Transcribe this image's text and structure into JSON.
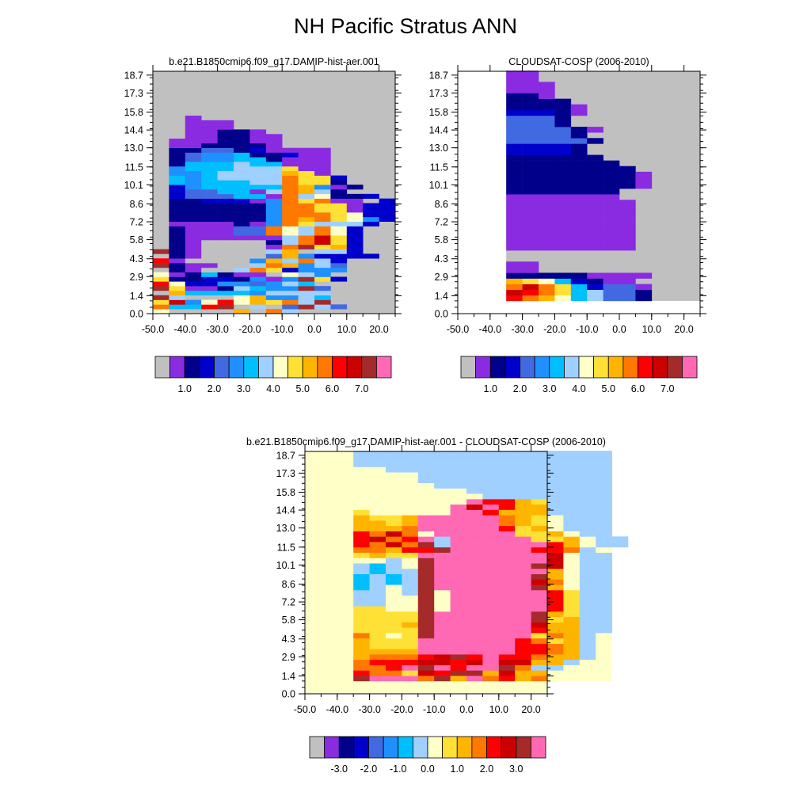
{
  "title": "NH Pacific Stratus ANN",
  "colors": {
    "palette": [
      "#c0c0c0",
      "#8a2be2",
      "#00008b",
      "#0000cd",
      "#4169e1",
      "#1e90ff",
      "#00bfff",
      "#a0d0ff",
      "#ffffc8",
      "#ffe135",
      "#ffb400",
      "#ff7800",
      "#ff0000",
      "#cd0000",
      "#a52a2a",
      "#ff69b4"
    ],
    "missing_panel1": "#c0c0c0",
    "missing_panel2_outside": "#ffffff",
    "missing_panel3": "#ffffc8"
  },
  "chart_data": [
    {
      "type": "heatmap",
      "title": "b.e21.B1850cmip6.f09_g17.DAMIP-hist-aer.001",
      "xlim": [
        -50,
        25
      ],
      "ylim": [
        0,
        19
      ],
      "x_ticks": [
        "-50.0",
        "-40.0",
        "-30.0",
        "-20.0",
        "-10.0",
        "0.0",
        "10.0",
        "20.0"
      ],
      "y_ticks": [
        "0.0",
        "1.4",
        "2.9",
        "4.3",
        "5.8",
        "7.2",
        "8.6",
        "10.1",
        "11.5",
        "13.0",
        "14.4",
        "15.8",
        "17.3",
        "18.7"
      ],
      "colorbar_labels": [
        "1.0",
        "2.0",
        "3.0",
        "4.0",
        "5.0",
        "6.0",
        "7.0"
      ],
      "x_range": [
        -50,
        10
      ],
      "rows": [
        "8ff0fafb7fffffff",
        "b66cef7f4e74ffff",
        "9d58c8a9b7efffff",
        "e7fff8a5576fffff",
        "fa666657777fffff",
        "e91127655e4fffff",
        "c833554576ffffff",
        "922332515e93ffff",
        "8126211f875fffff",
        "f21007b93555ffff",
        "e211007ba574ffff",
        "c100005a7b73ffff",
        "f2100004a53333ff",
        "e2100007af773fff",
        "f2100001be9a3fff",
        "f21000027bd93fff",
        "f21111117bd93fff",
        "f211144b87b83fff",
        "f211144b87b83fff",
        "f1111215b97773ff",
        "f2222225bab9853f",
        "f2222225bbb9833f",
        "f2222225bb99133f",
        "f2222225bb99133f",
        "f2233315b9b11f3f",
        "f3444661b78223ff",
        "f3446617ba72ffff",
        "f3566666ba512fff",
        "f6566677b992ffff",
        "f6567777b993ffff",
        "f5567777a91fffff",
        "f5666777911fffff",
        "f2666766111fffff",
        "f2455662111fffff",
        "f2455622311fffff",
        "f2244231111fffff",
        "f1122221ffffffff",
        "f1112211ffffffff",
        "ff112211ffffffff",
        "ff11221fffffffff",
        "ff111fffffffffff",
        "ff111fffffffffff",
        "ff1fffffffffffff",
        "ffffffffffffffff",
        "ffffffffffffffff",
        "ffffffffffffffff",
        "ffffffffffffffff",
        "ffffffffffffffff",
        "ffffffffffffffff",
        "ffffffffffffffff"
      ]
    },
    {
      "type": "heatmap",
      "title": "CLOUDSAT-COSP (2006-2010)",
      "xlim": [
        -50,
        25
      ],
      "ylim": [
        0,
        19
      ],
      "x_ticks": [
        "-50.0",
        "-40.0",
        "-30.0",
        "-20.0",
        "-10.0",
        "0.0",
        "10.0",
        "20.0"
      ],
      "y_ticks": [
        "0.0",
        "1.4",
        "2.9",
        "4.3",
        "5.8",
        "7.2",
        "8.6",
        "10.1",
        "11.5",
        "13.0",
        "14.4",
        "15.8",
        "17.3",
        "18.7"
      ],
      "colorbar_labels": [
        "1.0",
        "2.0",
        "3.0",
        "4.0",
        "5.0",
        "6.0",
        "7.0"
      ],
      "x_range": [
        -35,
        5
      ],
      "rows": [
        "cba867442",
        "dcb967442",
        "bdb963441",
        "a9863211",
        "222221111",
        "11",
        "11",
        "",
        "",
        "11111111",
        "11111111",
        "11111111",
        "11111111",
        "11111111",
        "11111111",
        "11111111",
        "11111111",
        "11111111",
        "1111111",
        "2222222",
        "222222221",
        "222222221",
        "222222221",
        "22222222",
        "2222222",
        "222222",
        "33332",
        "33332",
        "444442",
        "44442",
        "444421",
        "4442",
        "4442",
        "33321",
        "22221",
        "2222",
        "221",
        "111",
        "111",
        "11",
        "11"
      ]
    },
    {
      "type": "heatmap",
      "title": "b.e21.B1850cmip6.f09_g17.DAMIP-hist-aer.001 - CLOUDSAT-COSP (2006-2010)",
      "xlim": [
        -50,
        25
      ],
      "ylim": [
        0,
        19
      ],
      "x_ticks": [
        "-50.0",
        "-40.0",
        "-30.0",
        "-20.0",
        "-10.0",
        "0.0",
        "10.0",
        "20.0"
      ],
      "y_ticks": [
        "0.0",
        "1.4",
        "2.9",
        "4.3",
        "5.8",
        "7.2",
        "8.6",
        "10.1",
        "11.5",
        "13.0",
        "14.4",
        "15.8",
        "17.3",
        "18.7"
      ],
      "colorbar_labels": [
        "-3.0",
        "-2.0",
        "-1.0",
        "0.0",
        "1.0",
        "2.0",
        "3.0"
      ],
      "x_range": [
        -35,
        25
      ],
      "rows": [
        "efffbeafbcab8888",
        "cbb9dceeadaa8888",
        "bbcfefcffeb77888",
        "bcccddcdfddaa788",
        "abbbcdecfccbaa78",
        "aaaaffffffccba78",
        "a999ffffffccba78",
        "a999ffffffcb9a78",
        "b989effffff9ba78",
        "9999effffffcaa77",
        "999aeffffffdaa77",
        "9999effffffe9a77",
        "9999effffffea977",
        "9988e8ffffffc977",
        "7788e8ffffffc977",
        "7788e8ffffffc977",
        "7787e8ffffffc977",
        "6787effffffea877",
        "6767effffffdb877",
        "6767effffffea877",
        "7677efffffffa877",
        "7678effffffed877",
        "8878efffffffd877",
        "9a99ffffffffd877",
        "bbaccefffffccb78",
        "cbdbe7ffffffca877",
        "cdbcf7fffff99a877",
        "cbdb8fffff99a877",
        "aaabfffffc9a8777",
        "aa9afffffba98777",
        "a99afffffba98777",
        "988888ffcaaa7777",
        "888888fdfcaa7777",
        "8888888fcca97777",
        "8888888877777777",
        "8888888777777777",
        "8888877777777777",
        "8888777777777777",
        "8888777777777777",
        "8877777777777777",
        "7777777777777777",
        "7777777777777777",
        "7777777777777777"
      ]
    }
  ]
}
